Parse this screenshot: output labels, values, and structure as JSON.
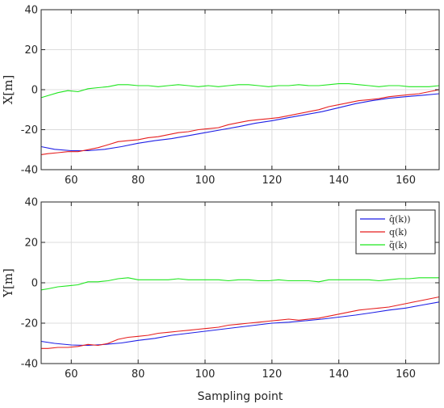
{
  "chart_data": [
    {
      "type": "line",
      "xlabel": "",
      "ylabel": "X[m]",
      "xlim": [
        51,
        170
      ],
      "ylim": [
        -40,
        40
      ],
      "xticks": [
        60,
        80,
        100,
        120,
        140,
        160
      ],
      "yticks": [
        -40,
        -20,
        0,
        20,
        40
      ],
      "grid": true,
      "legend": null,
      "series": [
        {
          "color": "#1f1fe6",
          "x": [
            51,
            55,
            60,
            65,
            70,
            75,
            80,
            85,
            90,
            95,
            100,
            105,
            110,
            115,
            120,
            125,
            130,
            135,
            140,
            145,
            150,
            155,
            160,
            165,
            170
          ],
          "y": [
            -28.5,
            -29.8,
            -30.5,
            -30.5,
            -29.8,
            -28.5,
            -26.8,
            -25.5,
            -24.5,
            -23.0,
            -21.5,
            -20.0,
            -18.5,
            -16.8,
            -15.5,
            -14.0,
            -12.5,
            -11.0,
            -9.0,
            -7.0,
            -5.5,
            -4.3,
            -3.5,
            -2.8,
            -2.0
          ]
        },
        {
          "color": "#e61f1f",
          "x": [
            51,
            53,
            56,
            59,
            62,
            65,
            68,
            71,
            74,
            77,
            80,
            83,
            86,
            89,
            92,
            95,
            98,
            101,
            104,
            107,
            110,
            113,
            116,
            119,
            122,
            125,
            128,
            131,
            134,
            137,
            140,
            143,
            146,
            149,
            152,
            155,
            158,
            161,
            164,
            167,
            170
          ],
          "y": [
            -32.5,
            -32.0,
            -31.5,
            -31.0,
            -31.0,
            -30.0,
            -29.0,
            -27.5,
            -26.0,
            -25.5,
            -25.0,
            -24.0,
            -23.5,
            -22.5,
            -21.5,
            -21.0,
            -20.0,
            -19.5,
            -19.0,
            -17.5,
            -16.5,
            -15.5,
            -15.0,
            -14.5,
            -14.0,
            -13.0,
            -12.0,
            -11.0,
            -10.0,
            -8.5,
            -7.5,
            -6.5,
            -5.5,
            -5.0,
            -4.5,
            -3.5,
            -3.0,
            -2.5,
            -2.0,
            -1.0,
            0.0
          ]
        },
        {
          "color": "#1fe61f",
          "x": [
            51,
            53,
            56,
            59,
            62,
            65,
            68,
            71,
            74,
            77,
            80,
            83,
            86,
            89,
            92,
            95,
            98,
            101,
            104,
            107,
            110,
            113,
            116,
            119,
            122,
            125,
            128,
            131,
            134,
            137,
            140,
            143,
            146,
            149,
            152,
            155,
            158,
            161,
            164,
            167,
            170
          ],
          "y": [
            -4.0,
            -3.0,
            -1.5,
            -0.5,
            -1.0,
            0.5,
            1.0,
            1.5,
            2.5,
            2.5,
            2.0,
            2.0,
            1.5,
            2.0,
            2.5,
            2.0,
            1.5,
            2.0,
            1.5,
            2.0,
            2.5,
            2.5,
            2.0,
            1.5,
            2.0,
            2.0,
            2.5,
            2.0,
            2.0,
            2.5,
            3.0,
            3.0,
            2.5,
            2.0,
            1.5,
            2.0,
            2.0,
            1.5,
            1.5,
            1.5,
            2.0
          ]
        }
      ]
    },
    {
      "type": "line",
      "xlabel": "Sampling point",
      "ylabel": "Y[m]",
      "xlim": [
        51,
        170
      ],
      "ylim": [
        -40,
        40
      ],
      "xticks": [
        60,
        80,
        100,
        120,
        140,
        160
      ],
      "yticks": [
        -40,
        -20,
        0,
        20,
        40
      ],
      "grid": true,
      "legend": "top-right",
      "series": [
        {
          "name": "q̂(k))",
          "color": "#1f1fe6",
          "x": [
            51,
            55,
            60,
            65,
            70,
            75,
            80,
            85,
            90,
            95,
            100,
            105,
            110,
            115,
            120,
            125,
            130,
            135,
            140,
            145,
            150,
            155,
            160,
            165,
            170
          ],
          "y": [
            -29.0,
            -30.0,
            -30.8,
            -31.0,
            -30.5,
            -29.8,
            -28.5,
            -27.5,
            -26.0,
            -25.0,
            -24.0,
            -23.0,
            -22.0,
            -21.0,
            -20.0,
            -19.5,
            -18.8,
            -18.0,
            -17.0,
            -16.0,
            -14.8,
            -13.5,
            -12.5,
            -11.0,
            -9.5
          ]
        },
        {
          "name": "q(k)",
          "color": "#e61f1f",
          "x": [
            51,
            53,
            56,
            59,
            62,
            65,
            68,
            71,
            74,
            77,
            80,
            83,
            86,
            89,
            92,
            95,
            98,
            101,
            104,
            107,
            110,
            113,
            116,
            119,
            122,
            125,
            128,
            131,
            134,
            137,
            140,
            143,
            146,
            149,
            152,
            155,
            158,
            161,
            164,
            167,
            170
          ],
          "y": [
            -32.5,
            -32.5,
            -32.0,
            -32.0,
            -31.5,
            -30.5,
            -31.0,
            -30.0,
            -28.0,
            -27.0,
            -26.5,
            -26.0,
            -25.0,
            -24.5,
            -24.0,
            -23.5,
            -23.0,
            -22.5,
            -22.0,
            -21.0,
            -20.5,
            -20.0,
            -19.5,
            -19.0,
            -18.5,
            -18.0,
            -18.5,
            -18.0,
            -17.5,
            -16.5,
            -15.5,
            -14.5,
            -13.5,
            -13.0,
            -12.5,
            -12.0,
            -11.0,
            -10.0,
            -9.0,
            -8.0,
            -7.0
          ]
        },
        {
          "name": "q̃(k)",
          "color": "#1fe61f",
          "x": [
            51,
            53,
            56,
            59,
            62,
            65,
            68,
            71,
            74,
            77,
            80,
            83,
            86,
            89,
            92,
            95,
            98,
            101,
            104,
            107,
            110,
            113,
            116,
            119,
            122,
            125,
            128,
            131,
            134,
            137,
            140,
            143,
            146,
            149,
            152,
            155,
            158,
            161,
            164,
            167,
            170
          ],
          "y": [
            -3.5,
            -3.0,
            -2.0,
            -1.5,
            -1.0,
            0.5,
            0.5,
            1.0,
            2.0,
            2.5,
            1.5,
            1.5,
            1.5,
            1.5,
            2.0,
            1.5,
            1.5,
            1.5,
            1.5,
            1.0,
            1.5,
            1.5,
            1.0,
            1.0,
            1.5,
            1.0,
            1.0,
            1.0,
            0.5,
            1.5,
            1.5,
            1.5,
            1.5,
            1.5,
            1.0,
            1.5,
            2.0,
            2.0,
            2.5,
            2.5,
            2.5
          ]
        }
      ]
    }
  ]
}
